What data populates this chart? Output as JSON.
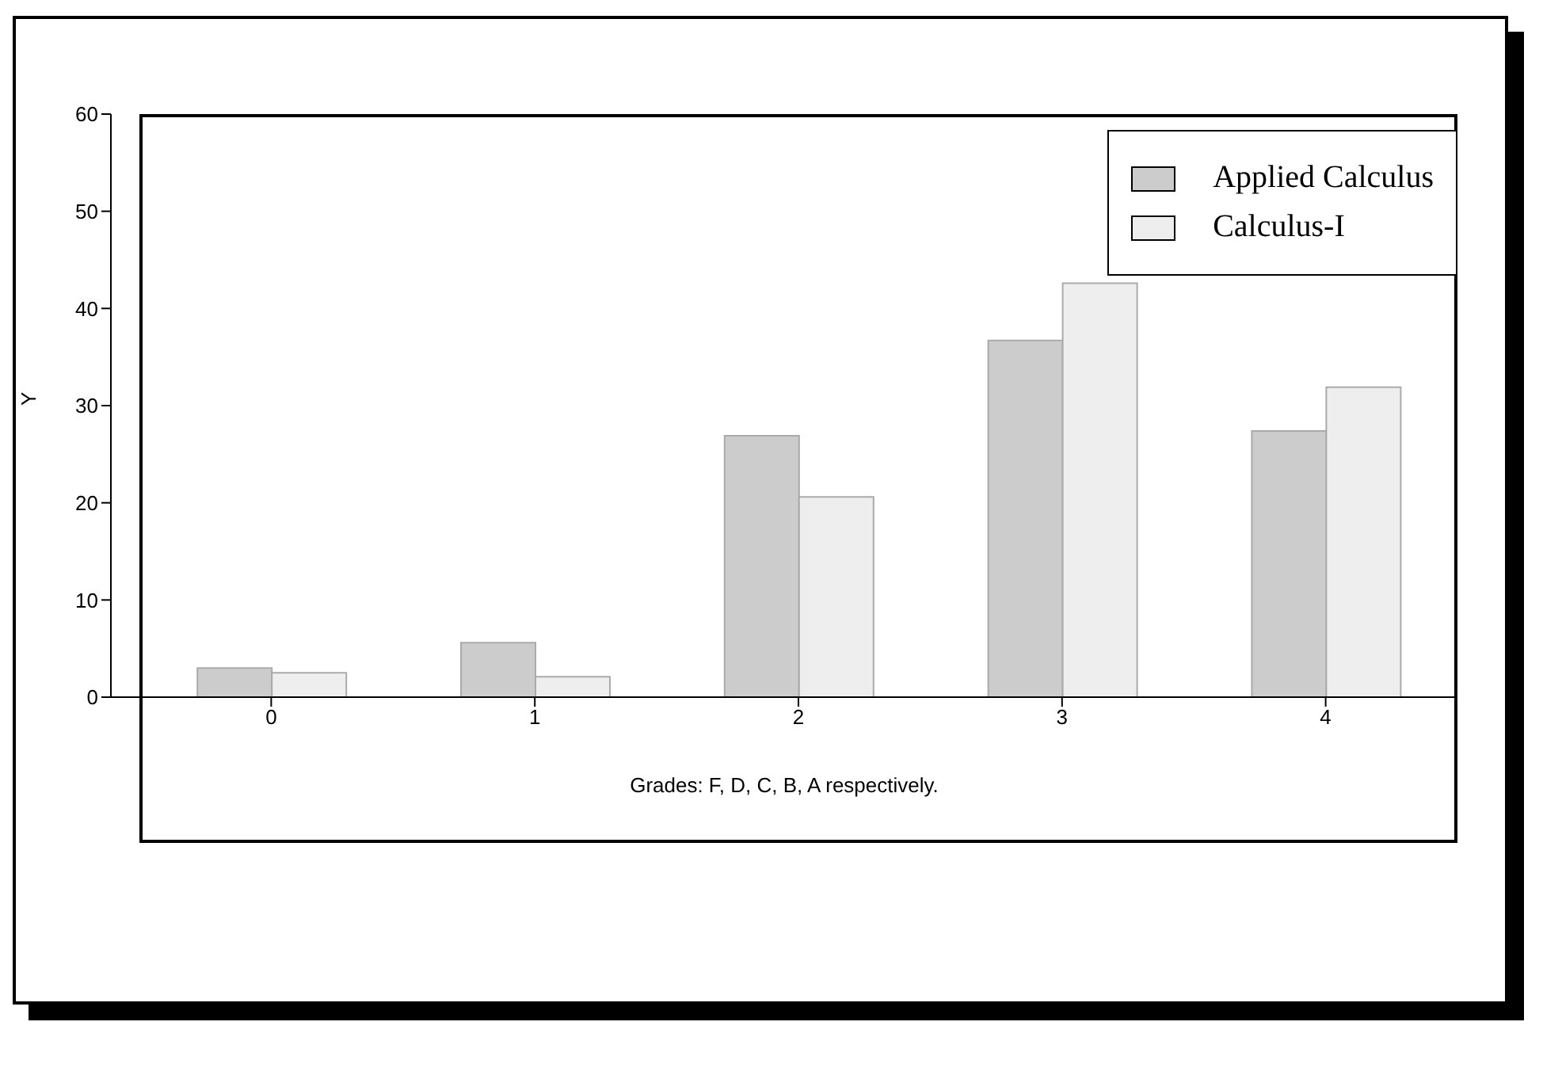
{
  "chart_data": {
    "type": "bar",
    "xlabel": "Grades: F, D, C, B, A respectively.",
    "ylabel": "Y",
    "categories": [
      "0",
      "1",
      "2",
      "3",
      "4"
    ],
    "series": [
      {
        "name": "Applied Calculus",
        "color": "#cccccc",
        "values": [
          3.0,
          5.6,
          26.9,
          36.7,
          27.4
        ]
      },
      {
        "name": "Calculus-I",
        "color": "#eeeeee",
        "values": [
          2.5,
          2.1,
          20.6,
          42.6,
          31.9
        ]
      }
    ],
    "ylim": [
      0,
      60
    ],
    "yticks": [
      0,
      10,
      20,
      30,
      40,
      50,
      60
    ],
    "grid": false,
    "legend": "top right"
  }
}
